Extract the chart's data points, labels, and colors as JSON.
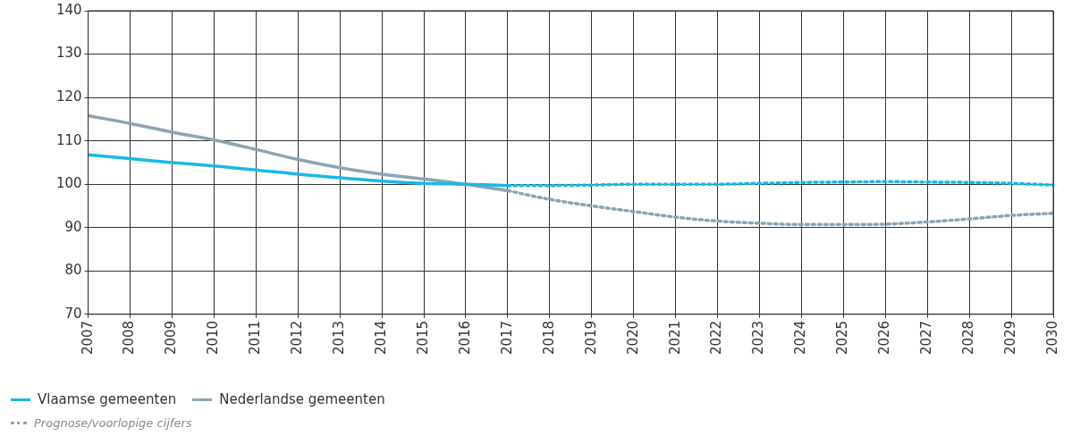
{
  "chart_data": {
    "type": "line",
    "categories": [
      "2007",
      "2008",
      "2009",
      "2010",
      "2011",
      "2012",
      "2013",
      "2014",
      "2015",
      "2016",
      "2017",
      "2018",
      "2019",
      "2020",
      "2021",
      "2022",
      "2023",
      "2024",
      "2025",
      "2026",
      "2027",
      "2028",
      "2029",
      "2030"
    ],
    "ylim": [
      70,
      140
    ],
    "yticks": [
      70,
      80,
      90,
      100,
      110,
      120,
      130,
      140
    ],
    "grid": true,
    "legend": "bottom",
    "marker": "none",
    "annotations": [
      "Prognose/voorlopige cijfers"
    ],
    "series": [
      {
        "name": "Vlaamse gemeenten",
        "color": "#1ab8e6",
        "line_style": "solid",
        "values": [
          106.8,
          105.9,
          105,
          104.2,
          103.3,
          102.3,
          101.5,
          100.7,
          100.2,
          100,
          99.7,
          null,
          null,
          null,
          null,
          null,
          null,
          null,
          null,
          null,
          null,
          null,
          null,
          null
        ]
      },
      {
        "name": "Nederlandse gemeenten",
        "color": "#8aa4b4",
        "line_style": "solid",
        "values": [
          115.8,
          114,
          112,
          110.2,
          108,
          105.7,
          103.8,
          102.3,
          101.2,
          100,
          98.5,
          null,
          null,
          null,
          null,
          null,
          null,
          null,
          null,
          null,
          null,
          null,
          null,
          null
        ]
      },
      {
        "color": "#1ab8e6",
        "line_style": "dotted",
        "values": [
          null,
          null,
          null,
          null,
          null,
          null,
          null,
          null,
          null,
          null,
          99.7,
          99.7,
          99.8,
          100,
          100,
          100,
          100.2,
          100.4,
          100.5,
          100.6,
          100.5,
          100.4,
          100.2,
          99.8
        ]
      },
      {
        "color": "#8aa4b4",
        "line_style": "dotted",
        "values": [
          null,
          null,
          null,
          null,
          null,
          null,
          null,
          null,
          null,
          null,
          98.5,
          96.5,
          95,
          93.7,
          92.4,
          91.5,
          91,
          90.7,
          90.7,
          90.8,
          91.3,
          92,
          92.8,
          93.3
        ]
      }
    ]
  }
}
